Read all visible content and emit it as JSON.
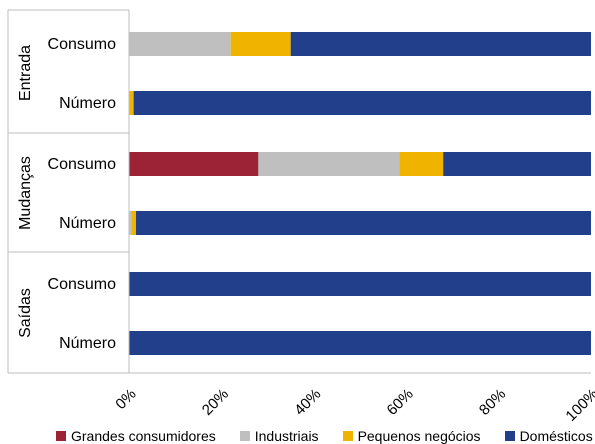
{
  "chart_data": {
    "type": "bar",
    "orientation": "horizontal",
    "stacked": true,
    "normalized_percent": true,
    "title": "",
    "xlabel": "",
    "ylabel": "",
    "xlim": [
      0,
      100
    ],
    "x_ticks": [
      "0%",
      "20%",
      "40%",
      "60%",
      "80%",
      "100%"
    ],
    "grid": false,
    "legend_position": "bottom",
    "groups": [
      {
        "label": "Entrada",
        "rows": [
          "Consumo",
          "Número"
        ]
      },
      {
        "label": "Mudanças",
        "rows": [
          "Consumo",
          "Número"
        ]
      },
      {
        "label": "Saídas",
        "rows": [
          "Consumo",
          "Número"
        ]
      }
    ],
    "categories": [
      "Entrada - Consumo",
      "Entrada - Número",
      "Mudanças - Consumo",
      "Mudanças - Número",
      "Saídas - Consumo",
      "Saídas - Número"
    ],
    "series": [
      {
        "name": "Grandes consumidores",
        "color": "#9b2335",
        "values": [
          0,
          0,
          28,
          0,
          0,
          0
        ]
      },
      {
        "name": "Industriais",
        "color": "#bfbfbf",
        "values": [
          22,
          0,
          30.5,
          0.5,
          0,
          0
        ]
      },
      {
        "name": "Pequenos negócios",
        "color": "#f0b400",
        "values": [
          13,
          1,
          9.5,
          1,
          0,
          0
        ]
      },
      {
        "name": "Domésticos",
        "color": "#213f8b",
        "values": [
          65,
          99,
          32,
          98.5,
          100,
          100
        ]
      }
    ]
  }
}
